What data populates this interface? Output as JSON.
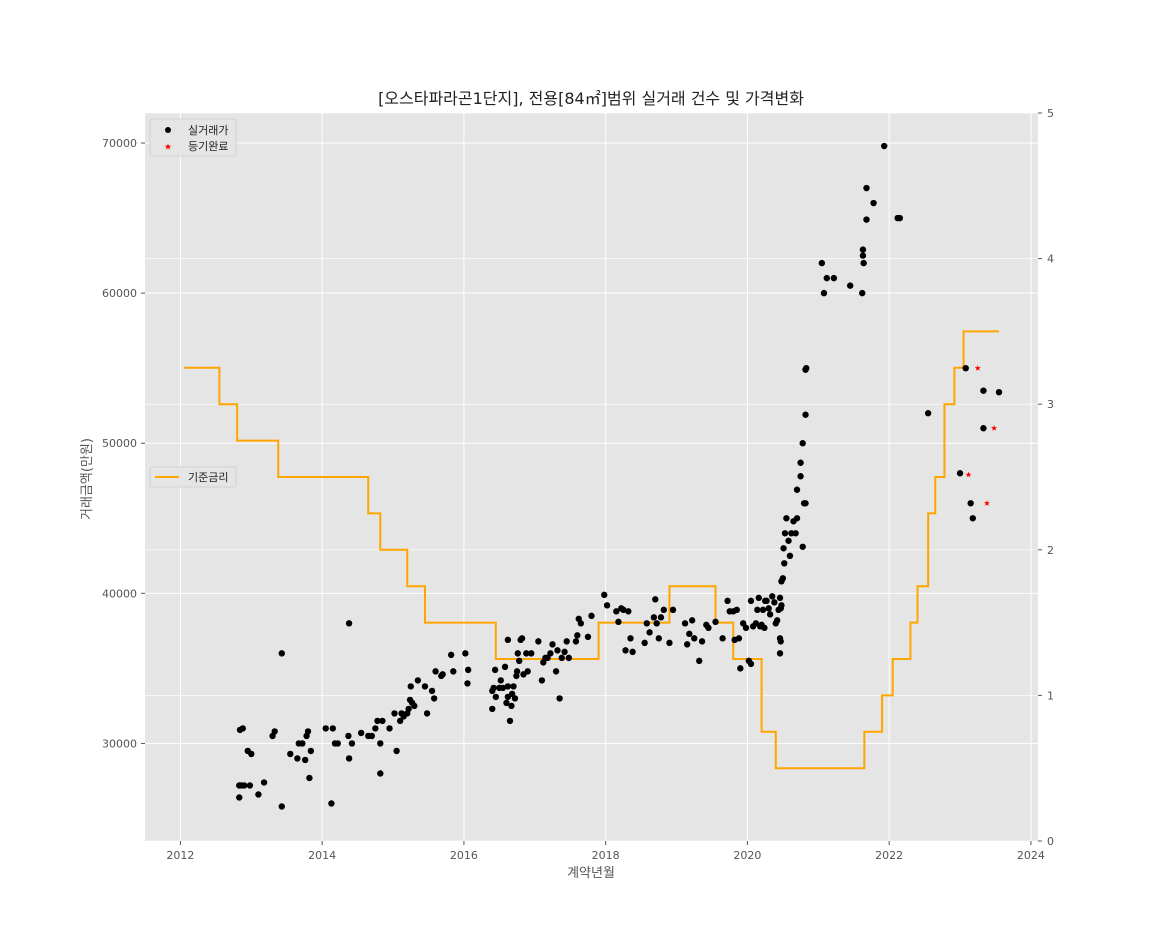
{
  "chart_data": {
    "type": "scatter",
    "title": "[오스타파라곤1단지], 전용[84㎡]범위 실거래 건수 및 가격변화",
    "xlabel": "계약년월",
    "ylabel": "거래금액(만원)",
    "xlim": [
      2011.5,
      2024.1
    ],
    "ylim": [
      23500,
      72000
    ],
    "y2lim": [
      0,
      5
    ],
    "xticks": [
      2012,
      2014,
      2016,
      2018,
      2020,
      2022,
      2024
    ],
    "yticks": [
      30000,
      40000,
      50000,
      60000,
      70000
    ],
    "y2ticks": [
      0,
      1,
      2,
      3,
      4,
      5
    ],
    "grid": true,
    "legend_upper": {
      "position": "top-left",
      "entries": [
        "실거래가",
        "등기완료"
      ]
    },
    "legend_lower": {
      "position": "middle-left",
      "entries": [
        "기준금리"
      ]
    },
    "series": [
      {
        "name": "실거래가",
        "kind": "scatter",
        "marker": "circle",
        "color": "#000000",
        "points": [
          [
            2012.83,
            26400
          ],
          [
            2012.83,
            27200
          ],
          [
            2012.86,
            27200
          ],
          [
            2012.9,
            27200
          ],
          [
            2012.98,
            27200
          ],
          [
            2012.84,
            30900
          ],
          [
            2012.88,
            31000
          ],
          [
            2012.95,
            29500
          ],
          [
            2013.0,
            29300
          ],
          [
            2013.1,
            26600
          ],
          [
            2013.18,
            27400
          ],
          [
            2013.3,
            30500
          ],
          [
            2013.33,
            30800
          ],
          [
            2013.43,
            25800
          ],
          [
            2013.43,
            36000
          ],
          [
            2013.55,
            29300
          ],
          [
            2013.65,
            29000
          ],
          [
            2013.67,
            30000
          ],
          [
            2013.72,
            30000
          ],
          [
            2013.76,
            28900
          ],
          [
            2013.78,
            30500
          ],
          [
            2013.8,
            30800
          ],
          [
            2013.82,
            27700
          ],
          [
            2013.84,
            29500
          ],
          [
            2014.05,
            31000
          ],
          [
            2014.13,
            26000
          ],
          [
            2014.15,
            31000
          ],
          [
            2014.18,
            30000
          ],
          [
            2014.22,
            30000
          ],
          [
            2014.37,
            30500
          ],
          [
            2014.38,
            29000
          ],
          [
            2014.38,
            38000
          ],
          [
            2014.42,
            30000
          ],
          [
            2014.55,
            30700
          ],
          [
            2014.65,
            30500
          ],
          [
            2014.7,
            30500
          ],
          [
            2014.75,
            31000
          ],
          [
            2014.78,
            31500
          ],
          [
            2014.82,
            28000
          ],
          [
            2014.82,
            30000
          ],
          [
            2014.85,
            31500
          ],
          [
            2014.95,
            31000
          ],
          [
            2015.02,
            32000
          ],
          [
            2015.05,
            29500
          ],
          [
            2015.1,
            31500
          ],
          [
            2015.12,
            32000
          ],
          [
            2015.15,
            31800
          ],
          [
            2015.2,
            32000
          ],
          [
            2015.22,
            32300
          ],
          [
            2015.24,
            32900
          ],
          [
            2015.25,
            33800
          ],
          [
            2015.27,
            32700
          ],
          [
            2015.3,
            32500
          ],
          [
            2015.35,
            34200
          ],
          [
            2015.45,
            33800
          ],
          [
            2015.48,
            32000
          ],
          [
            2015.55,
            33500
          ],
          [
            2015.58,
            33000
          ],
          [
            2015.6,
            34800
          ],
          [
            2015.68,
            34500
          ],
          [
            2015.7,
            34600
          ],
          [
            2015.82,
            35900
          ],
          [
            2015.85,
            34800
          ],
          [
            2016.02,
            36000
          ],
          [
            2016.05,
            34000
          ],
          [
            2016.06,
            34900
          ],
          [
            2016.4,
            32300
          ],
          [
            2016.4,
            33500
          ],
          [
            2016.42,
            33700
          ],
          [
            2016.44,
            34900
          ],
          [
            2016.45,
            33100
          ],
          [
            2016.5,
            33700
          ],
          [
            2016.52,
            34200
          ],
          [
            2016.55,
            33700
          ],
          [
            2016.58,
            35100
          ],
          [
            2016.6,
            32700
          ],
          [
            2016.62,
            33100
          ],
          [
            2016.62,
            33800
          ],
          [
            2016.62,
            36900
          ],
          [
            2016.65,
            31500
          ],
          [
            2016.67,
            32500
          ],
          [
            2016.68,
            33300
          ],
          [
            2016.7,
            33800
          ],
          [
            2016.72,
            33000
          ],
          [
            2016.74,
            34500
          ],
          [
            2016.75,
            34800
          ],
          [
            2016.76,
            36000
          ],
          [
            2016.78,
            35500
          ],
          [
            2016.8,
            36900
          ],
          [
            2016.82,
            37000
          ],
          [
            2016.84,
            34600
          ],
          [
            2016.88,
            36000
          ],
          [
            2016.9,
            34800
          ],
          [
            2016.95,
            36000
          ],
          [
            2017.05,
            36800
          ],
          [
            2017.1,
            34200
          ],
          [
            2017.12,
            35400
          ],
          [
            2017.15,
            35700
          ],
          [
            2017.18,
            35700
          ],
          [
            2017.22,
            36000
          ],
          [
            2017.25,
            36600
          ],
          [
            2017.3,
            34800
          ],
          [
            2017.32,
            36200
          ],
          [
            2017.35,
            33000
          ],
          [
            2017.38,
            35700
          ],
          [
            2017.42,
            36100
          ],
          [
            2017.45,
            36800
          ],
          [
            2017.48,
            35700
          ],
          [
            2017.58,
            36800
          ],
          [
            2017.6,
            37200
          ],
          [
            2017.62,
            38300
          ],
          [
            2017.65,
            38000
          ],
          [
            2017.75,
            37100
          ],
          [
            2017.8,
            38500
          ],
          [
            2017.98,
            39900
          ],
          [
            2018.02,
            39200
          ],
          [
            2018.15,
            38800
          ],
          [
            2018.18,
            38100
          ],
          [
            2018.22,
            39000
          ],
          [
            2018.25,
            38900
          ],
          [
            2018.28,
            36200
          ],
          [
            2018.32,
            38800
          ],
          [
            2018.35,
            37000
          ],
          [
            2018.38,
            36100
          ],
          [
            2018.55,
            36700
          ],
          [
            2018.58,
            38000
          ],
          [
            2018.62,
            37400
          ],
          [
            2018.68,
            38400
          ],
          [
            2018.7,
            39600
          ],
          [
            2018.72,
            38000
          ],
          [
            2018.75,
            37000
          ],
          [
            2018.78,
            38400
          ],
          [
            2018.82,
            38900
          ],
          [
            2018.9,
            36700
          ],
          [
            2018.95,
            38900
          ],
          [
            2019.12,
            38000
          ],
          [
            2019.15,
            36600
          ],
          [
            2019.18,
            37300
          ],
          [
            2019.22,
            38200
          ],
          [
            2019.25,
            37000
          ],
          [
            2019.32,
            35500
          ],
          [
            2019.36,
            36800
          ],
          [
            2019.42,
            37900
          ],
          [
            2019.45,
            37700
          ],
          [
            2019.55,
            38100
          ],
          [
            2019.65,
            37000
          ],
          [
            2019.72,
            39500
          ],
          [
            2019.75,
            38800
          ],
          [
            2019.8,
            38800
          ],
          [
            2019.82,
            36900
          ],
          [
            2019.85,
            38900
          ],
          [
            2019.88,
            37000
          ],
          [
            2019.9,
            35000
          ],
          [
            2019.94,
            38000
          ],
          [
            2019.98,
            37700
          ],
          [
            2020.02,
            35500
          ],
          [
            2020.05,
            35300
          ],
          [
            2020.05,
            39500
          ],
          [
            2020.08,
            37800
          ],
          [
            2020.12,
            38000
          ],
          [
            2020.14,
            38900
          ],
          [
            2020.16,
            39700
          ],
          [
            2020.18,
            37800
          ],
          [
            2020.2,
            37900
          ],
          [
            2020.22,
            38900
          ],
          [
            2020.24,
            37700
          ],
          [
            2020.25,
            39500
          ],
          [
            2020.27,
            39500
          ],
          [
            2020.3,
            39000
          ],
          [
            2020.32,
            38600
          ],
          [
            2020.35,
            39800
          ],
          [
            2020.38,
            39400
          ],
          [
            2020.4,
            38000
          ],
          [
            2020.42,
            38200
          ],
          [
            2020.44,
            38900
          ],
          [
            2020.46,
            39700
          ],
          [
            2020.47,
            39000
          ],
          [
            2020.48,
            39200
          ],
          [
            2020.48,
            40800
          ],
          [
            2020.47,
            36800
          ],
          [
            2020.46,
            37000
          ],
          [
            2020.46,
            36000
          ],
          [
            2020.5,
            41000
          ],
          [
            2020.51,
            43000
          ],
          [
            2020.52,
            42000
          ],
          [
            2020.53,
            44000
          ],
          [
            2020.55,
            45000
          ],
          [
            2020.58,
            43500
          ],
          [
            2020.6,
            42500
          ],
          [
            2020.62,
            44000
          ],
          [
            2020.65,
            44800
          ],
          [
            2020.68,
            44000
          ],
          [
            2020.7,
            45000
          ],
          [
            2020.7,
            46900
          ],
          [
            2020.75,
            48700
          ],
          [
            2020.75,
            47800
          ],
          [
            2020.78,
            50000
          ],
          [
            2020.78,
            43100
          ],
          [
            2020.8,
            46000
          ],
          [
            2020.82,
            46000
          ],
          [
            2020.82,
            51900
          ],
          [
            2020.82,
            54900
          ],
          [
            2020.83,
            55000
          ],
          [
            2021.05,
            62000
          ],
          [
            2021.08,
            60000
          ],
          [
            2021.12,
            61000
          ],
          [
            2021.22,
            61000
          ],
          [
            2021.45,
            60500
          ],
          [
            2021.62,
            60000
          ],
          [
            2021.63,
            62500
          ],
          [
            2021.63,
            62900
          ],
          [
            2021.64,
            62000
          ],
          [
            2021.68,
            64900
          ],
          [
            2021.68,
            67000
          ],
          [
            2021.78,
            66000
          ],
          [
            2021.93,
            69800
          ],
          [
            2022.12,
            65000
          ],
          [
            2022.15,
            65000
          ],
          [
            2022.55,
            52000
          ],
          [
            2023.0,
            48000
          ],
          [
            2023.08,
            55000
          ],
          [
            2023.15,
            46000
          ],
          [
            2023.18,
            45000
          ],
          [
            2023.33,
            53500
          ],
          [
            2023.33,
            51000
          ],
          [
            2023.55,
            53400
          ]
        ]
      },
      {
        "name": "등기완료",
        "kind": "scatter",
        "marker": "star",
        "color": "#ff0000",
        "points": [
          [
            2023.12,
            47900
          ],
          [
            2023.25,
            55000
          ],
          [
            2023.38,
            46000
          ],
          [
            2023.48,
            51000
          ]
        ]
      },
      {
        "name": "기준금리",
        "kind": "step",
        "axis": "right",
        "color": "#ffa500",
        "steps": [
          [
            2012.05,
            3.25
          ],
          [
            2012.55,
            3.0
          ],
          [
            2012.8,
            2.75
          ],
          [
            2013.38,
            2.5
          ],
          [
            2014.65,
            2.25
          ],
          [
            2014.82,
            2.0
          ],
          [
            2015.2,
            1.75
          ],
          [
            2015.45,
            1.5
          ],
          [
            2016.45,
            1.25
          ],
          [
            2017.9,
            1.5
          ],
          [
            2018.9,
            1.75
          ],
          [
            2019.55,
            1.5
          ],
          [
            2019.8,
            1.25
          ],
          [
            2020.2,
            0.75
          ],
          [
            2020.4,
            0.5
          ],
          [
            2021.65,
            0.75
          ],
          [
            2021.9,
            1.0
          ],
          [
            2022.05,
            1.25
          ],
          [
            2022.3,
            1.5
          ],
          [
            2022.4,
            1.75
          ],
          [
            2022.55,
            2.25
          ],
          [
            2022.65,
            2.5
          ],
          [
            2022.78,
            3.0
          ],
          [
            2022.92,
            3.25
          ],
          [
            2023.05,
            3.5
          ],
          [
            2023.55,
            3.5
          ]
        ]
      }
    ]
  }
}
